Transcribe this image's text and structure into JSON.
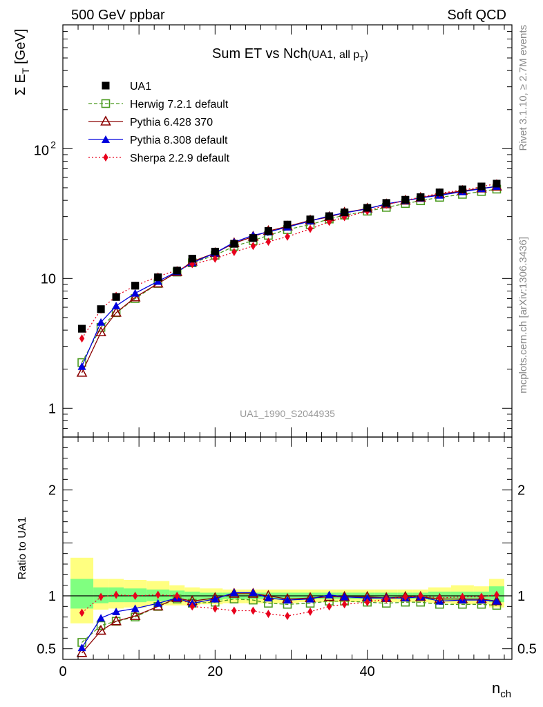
{
  "header": {
    "left": "500 GeV ppbar",
    "right": "Soft QCD"
  },
  "side_text": {
    "rivet": "Rivet 3.1.10, ≥ 2.7M events",
    "source": "mcplots.cern.ch [arXiv:1306.3436]"
  },
  "watermark": "UA1_1990_S2044935",
  "chart_data": [
    {
      "type": "line",
      "title_main": "Sum ET vs Nch",
      "title_sub": "(UA1, all p",
      "title_sub_index": "T",
      "title_sub_close": ")",
      "ylabel": "Σ E",
      "ylabel_sub": "T",
      "ylabel_unit": " [GeV]",
      "yscale": "log",
      "ylim": [
        0.6,
        900
      ],
      "xlim": [
        0,
        59
      ],
      "y_tick_labels": [
        "1",
        "10",
        "10"
      ],
      "y_tick_sup": "2",
      "legend_position": "top-left",
      "x": [
        2.5,
        5,
        7,
        9.5,
        12.5,
        15,
        17,
        20,
        22.5,
        25,
        27,
        29.5,
        32.5,
        35,
        37,
        40,
        42.5,
        45,
        47,
        49.5,
        52.5,
        55,
        57
      ],
      "series": [
        {
          "name": "UA1",
          "color": "#000000",
          "marker": "square-filled",
          "line": "none",
          "values": [
            4.1,
            5.8,
            7.2,
            8.8,
            10.2,
            11.5,
            14.2,
            16.1,
            18.5,
            20.5,
            23.2,
            26.0,
            28.5,
            30.2,
            32.3,
            35.0,
            38.2,
            40.4,
            42.3,
            46.0,
            48.6,
            51.2,
            53.8
          ]
        },
        {
          "name": "Herwig 7.2.1 default",
          "color": "#4a9a1e",
          "marker": "square-open",
          "line": "dashed",
          "values": [
            2.25,
            4.2,
            5.45,
            7.0,
            9.15,
            11.2,
            13.2,
            15.1,
            17.7,
            19.6,
            21.5,
            23.8,
            26.0,
            28.7,
            30.8,
            33.0,
            35.3,
            37.8,
            39.7,
            42.2,
            44.5,
            46.8,
            48.8
          ]
        },
        {
          "name": "Pythia 6.428 370",
          "color": "#8b0000",
          "marker": "triangle-open",
          "line": "solid",
          "values": [
            1.88,
            3.85,
            5.45,
            7.15,
            9.15,
            11.2,
            13.5,
            15.7,
            18.7,
            21.0,
            23.2,
            25.2,
            28.0,
            29.8,
            32.2,
            34.6,
            37.3,
            39.8,
            41.8,
            44.6,
            47.3,
            49.4,
            51.1
          ]
        },
        {
          "name": "Pythia 8.308 default",
          "color": "#0000dd",
          "marker": "triangle-filled",
          "line": "solid",
          "values": [
            2.1,
            4.6,
            6.15,
            7.7,
            9.5,
            11.3,
            13.2,
            15.7,
            19.0,
            21.5,
            22.8,
            24.9,
            27.7,
            30.4,
            32.0,
            34.4,
            37.6,
            39.8,
            41.8,
            43.8,
            46.6,
            49.2,
            51.3
          ]
        },
        {
          "name": "Sherpa 2.2.9 default",
          "color": "#e8001c",
          "marker": "diamond-filled",
          "line": "dotted",
          "values": [
            3.45,
            5.75,
            7.35,
            8.8,
            10.35,
            11.6,
            12.9,
            14.2,
            16.0,
            17.8,
            19.2,
            21.0,
            24.1,
            27.3,
            29.7,
            33.0,
            37.0,
            40.0,
            42.3,
            45.3,
            48.1,
            50.7,
            54.2
          ]
        }
      ]
    },
    {
      "type": "line",
      "ylabel": "Ratio to UA1",
      "xlabel": "n",
      "xlabel_sub": "ch",
      "ylim": [
        0.4,
        2.5
      ],
      "xlim": [
        0,
        59
      ],
      "y_tick_labels": [
        "0.5",
        "1",
        "2"
      ],
      "x_tick_labels": [
        "0",
        "20",
        "40"
      ],
      "reference_line": 1,
      "band_colors": {
        "outer": "#ffff80",
        "inner": "#80ff80"
      },
      "bins": [
        {
          "xmin": 1,
          "xmax": 4,
          "outer": [
            0.74,
            1.36
          ],
          "inner": [
            0.88,
            1.16
          ]
        },
        {
          "xmin": 4,
          "xmax": 6,
          "outer": [
            0.87,
            1.16
          ],
          "inner": [
            0.93,
            1.08
          ]
        },
        {
          "xmin": 6,
          "xmax": 8,
          "outer": [
            0.88,
            1.16
          ],
          "inner": [
            0.94,
            1.08
          ]
        },
        {
          "xmin": 8,
          "xmax": 11,
          "outer": [
            0.89,
            1.15
          ],
          "inner": [
            0.94,
            1.07
          ]
        },
        {
          "xmin": 11,
          "xmax": 14,
          "outer": [
            0.91,
            1.14
          ],
          "inner": [
            0.95,
            1.06
          ]
        },
        {
          "xmin": 14,
          "xmax": 16,
          "outer": [
            0.91,
            1.1
          ],
          "inner": [
            0.95,
            1.05
          ]
        },
        {
          "xmin": 16,
          "xmax": 18,
          "outer": [
            0.91,
            1.08
          ],
          "inner": [
            0.96,
            1.04
          ]
        },
        {
          "xmin": 18,
          "xmax": 21,
          "outer": [
            0.92,
            1.07
          ],
          "inner": [
            0.96,
            1.03
          ]
        },
        {
          "xmin": 21,
          "xmax": 24,
          "outer": [
            0.93,
            1.06
          ],
          "inner": [
            0.97,
            1.03
          ]
        },
        {
          "xmin": 24,
          "xmax": 26,
          "outer": [
            0.93,
            1.06
          ],
          "inner": [
            0.97,
            1.03
          ]
        },
        {
          "xmin": 26,
          "xmax": 28,
          "outer": [
            0.93,
            1.06
          ],
          "inner": [
            0.97,
            1.03
          ]
        },
        {
          "xmin": 28,
          "xmax": 31,
          "outer": [
            0.93,
            1.06
          ],
          "inner": [
            0.97,
            1.03
          ]
        },
        {
          "xmin": 31,
          "xmax": 34,
          "outer": [
            0.94,
            1.06
          ],
          "inner": [
            0.97,
            1.03
          ]
        },
        {
          "xmin": 34,
          "xmax": 36,
          "outer": [
            0.94,
            1.06
          ],
          "inner": [
            0.97,
            1.03
          ]
        },
        {
          "xmin": 36,
          "xmax": 38,
          "outer": [
            0.94,
            1.06
          ],
          "inner": [
            0.97,
            1.03
          ]
        },
        {
          "xmin": 38,
          "xmax": 41,
          "outer": [
            0.94,
            1.06
          ],
          "inner": [
            0.97,
            1.03
          ]
        },
        {
          "xmin": 41,
          "xmax": 44,
          "outer": [
            0.94,
            1.06
          ],
          "inner": [
            0.97,
            1.03
          ]
        },
        {
          "xmin": 44,
          "xmax": 46,
          "outer": [
            0.94,
            1.06
          ],
          "inner": [
            0.97,
            1.03
          ]
        },
        {
          "xmin": 46,
          "xmax": 48,
          "outer": [
            0.94,
            1.06
          ],
          "inner": [
            0.97,
            1.03
          ]
        },
        {
          "xmin": 48,
          "xmax": 51,
          "outer": [
            0.93,
            1.08
          ],
          "inner": [
            0.96,
            1.04
          ]
        },
        {
          "xmin": 51,
          "xmax": 54,
          "outer": [
            0.92,
            1.1
          ],
          "inner": [
            0.96,
            1.04
          ]
        },
        {
          "xmin": 54,
          "xmax": 56,
          "outer": [
            0.92,
            1.09
          ],
          "inner": [
            0.96,
            1.04
          ]
        },
        {
          "xmin": 56,
          "xmax": 58,
          "outer": [
            0.89,
            1.16
          ],
          "inner": [
            0.94,
            1.09
          ]
        }
      ],
      "x": [
        2.5,
        5,
        7,
        9.5,
        12.5,
        15,
        17,
        20,
        22.5,
        25,
        27,
        29.5,
        32.5,
        35,
        37,
        40,
        42.5,
        45,
        47,
        49.5,
        52.5,
        55,
        57
      ],
      "series": [
        {
          "name": "Herwig 7.2.1 default",
          "color": "#4a9a1e",
          "marker": "square-open",
          "line": "dashed",
          "values": [
            0.56,
            0.72,
            0.76,
            0.8,
            0.9,
            0.97,
            0.93,
            0.94,
            0.97,
            0.96,
            0.93,
            0.92,
            0.93,
            0.95,
            0.95,
            0.94,
            0.93,
            0.94,
            0.94,
            0.92,
            0.92,
            0.92,
            0.91
          ]
        },
        {
          "name": "Pythia 6.428 370",
          "color": "#8b0000",
          "marker": "triangle-open",
          "line": "solid",
          "values": [
            0.46,
            0.67,
            0.76,
            0.81,
            0.9,
            0.98,
            0.95,
            0.98,
            1.02,
            1.02,
            1.0,
            0.97,
            0.98,
            0.99,
            0.99,
            0.99,
            0.98,
            0.99,
            0.99,
            0.97,
            0.97,
            0.97,
            0.95
          ]
        },
        {
          "name": "Pythia 8.308 default",
          "color": "#0000dd",
          "marker": "triangle-filled",
          "line": "solid",
          "values": [
            0.51,
            0.79,
            0.85,
            0.88,
            0.93,
            0.98,
            0.93,
            0.97,
            1.03,
            1.03,
            0.98,
            0.96,
            0.97,
            1.01,
            0.99,
            0.98,
            0.98,
            0.98,
            0.99,
            0.95,
            0.96,
            0.96,
            0.95
          ]
        },
        {
          "name": "Sherpa 2.2.9 default",
          "color": "#e8001c",
          "marker": "diamond-filled",
          "line": "dotted",
          "values": [
            0.84,
            0.99,
            1.01,
            1.0,
            1.01,
            1.0,
            0.9,
            0.88,
            0.86,
            0.86,
            0.83,
            0.81,
            0.85,
            0.9,
            0.92,
            0.94,
            0.97,
            0.99,
            1.0,
            0.98,
            0.99,
            0.99,
            1.01
          ]
        }
      ]
    }
  ]
}
